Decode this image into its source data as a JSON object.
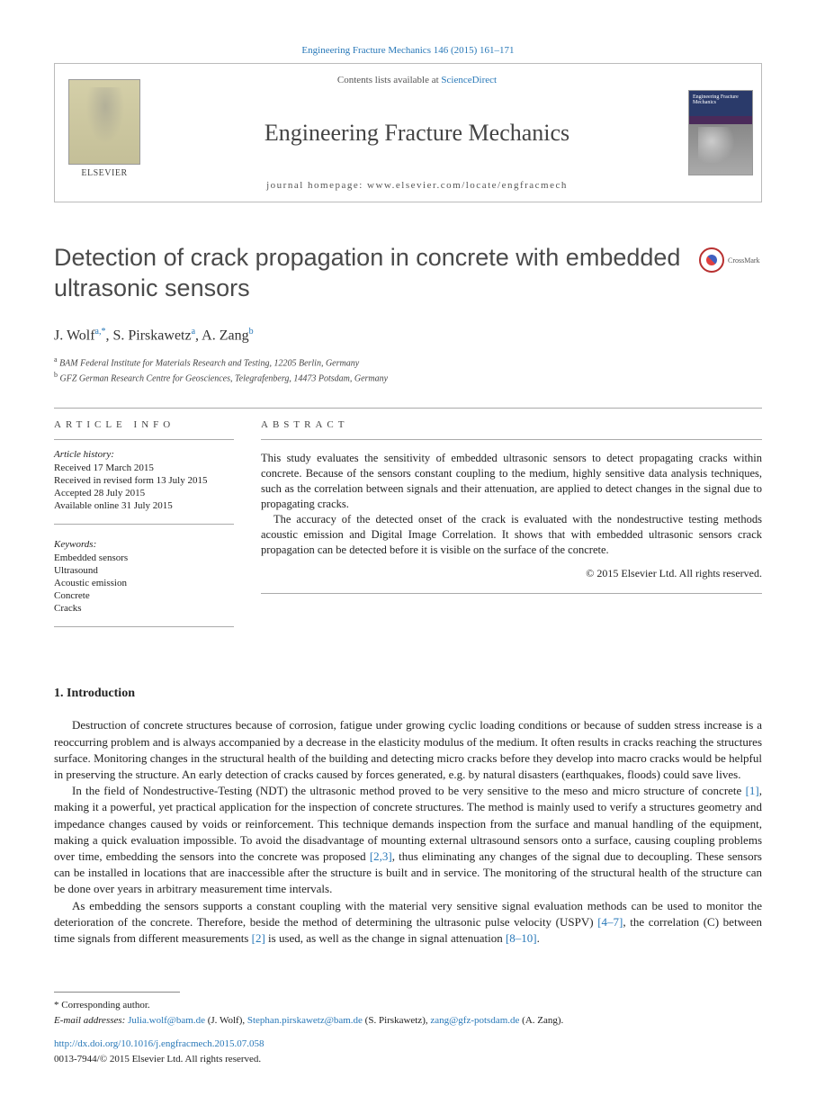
{
  "citation": "Engineering Fracture Mechanics 146 (2015) 161–171",
  "header": {
    "contents_prefix": "Contents lists available at ",
    "contents_link": "ScienceDirect",
    "journal_name": "Engineering Fracture Mechanics",
    "homepage_prefix": "journal homepage: ",
    "homepage_url": "www.elsevier.com/locate/engfracmech",
    "publisher": "ELSEVIER",
    "cover_label": "Engineering Fracture Mechanics"
  },
  "crossmark_label": "CrossMark",
  "title": "Detection of crack propagation in concrete with embedded ultrasonic sensors",
  "authors_html": "J. Wolf",
  "authors": [
    {
      "name": "J. Wolf",
      "refs": "a,",
      "corr": "*"
    },
    {
      "name": "S. Pirskawetz",
      "refs": "a"
    },
    {
      "name": "A. Zang",
      "refs": "b"
    }
  ],
  "affiliations": [
    {
      "ref": "a",
      "text": "BAM Federal Institute for Materials Research and Testing, 12205 Berlin, Germany"
    },
    {
      "ref": "b",
      "text": "GFZ German Research Centre for Geosciences, Telegrafenberg, 14473 Potsdam, Germany"
    }
  ],
  "article_info": {
    "heading": "ARTICLE INFO",
    "history_label": "Article history:",
    "history": [
      "Received 17 March 2015",
      "Received in revised form 13 July 2015",
      "Accepted 28 July 2015",
      "Available online 31 July 2015"
    ],
    "keywords_label": "Keywords:",
    "keywords": [
      "Embedded sensors",
      "Ultrasound",
      "Acoustic emission",
      "Concrete",
      "Cracks"
    ]
  },
  "abstract": {
    "heading": "ABSTRACT",
    "paragraphs": [
      "This study evaluates the sensitivity of embedded ultrasonic sensors to detect propagating cracks within concrete. Because of the sensors constant coupling to the medium, highly sensitive data analysis techniques, such as the correlation between signals and their attenuation, are applied to detect changes in the signal due to propagating cracks.",
      "The accuracy of the detected onset of the crack is evaluated with the nondestructive testing methods acoustic emission and Digital Image Correlation. It shows that with embedded ultrasonic sensors crack propagation can be detected before it is visible on the surface of the concrete."
    ],
    "copyright": "© 2015 Elsevier Ltd. All rights reserved."
  },
  "section1": {
    "heading": "1. Introduction",
    "p1": "Destruction of concrete structures because of corrosion, fatigue under growing cyclic loading conditions or because of sudden stress increase is a reoccurring problem and is always accompanied by a decrease in the elasticity modulus of the medium. It often results in cracks reaching the structures surface. Monitoring changes in the structural health of the building and detecting micro cracks before they develop into macro cracks would be helpful in preserving the structure. An early detection of cracks caused by forces generated, e.g. by natural disasters (earthquakes, floods) could save lives.",
    "p2_a": "In the field of Nondestructive-Testing (NDT) the ultrasonic method proved to be very sensitive to the meso and micro structure of concrete ",
    "p2_ref1": "[1]",
    "p2_b": ", making it a powerful, yet practical application for the inspection of concrete structures. The method is mainly used to verify a structures geometry and impedance changes caused by voids or reinforcement. This technique demands inspection from the surface and manual handling of the equipment, making a quick evaluation impossible. To avoid the disadvantage of mounting external ultrasound sensors onto a surface, causing coupling problems over time, embedding the sensors into the concrete was proposed ",
    "p2_ref2": "[2,3]",
    "p2_c": ", thus eliminating any changes of the signal due to decoupling. These sensors can be installed in locations that are inaccessible after the structure is built and in service. The monitoring of the structural health of the structure can be done over years in arbitrary measurement time intervals.",
    "p3_a": "As embedding the sensors supports a constant coupling with the material very sensitive signal evaluation methods can be used to monitor the deterioration of the concrete. Therefore, beside the method of determining the ultrasonic pulse velocity (USPV) ",
    "p3_ref1": "[4–7]",
    "p3_b": ", the correlation (C) between time signals from different measurements ",
    "p3_ref2": "[2]",
    "p3_c": " is used, as well as the change in signal attenuation ",
    "p3_ref3": "[8–10]",
    "p3_d": "."
  },
  "footer": {
    "corr_label": "* Corresponding author.",
    "email_label": "E-mail addresses:",
    "emails": [
      {
        "addr": "Julia.wolf@bam.de",
        "who": " (J. Wolf), "
      },
      {
        "addr": "Stephan.pirskawetz@bam.de",
        "who": " (S. Pirskawetz), "
      },
      {
        "addr": "zang@gfz-potsdam.de",
        "who": " (A. Zang)."
      }
    ],
    "doi": "http://dx.doi.org/10.1016/j.engfracmech.2015.07.058",
    "issn_line": "0013-7944/© 2015 Elsevier Ltd. All rights reserved."
  },
  "colors": {
    "link": "#2878b8",
    "text": "#222222",
    "heading_gray": "#4a4a4a",
    "rule": "#aaaaaa"
  }
}
